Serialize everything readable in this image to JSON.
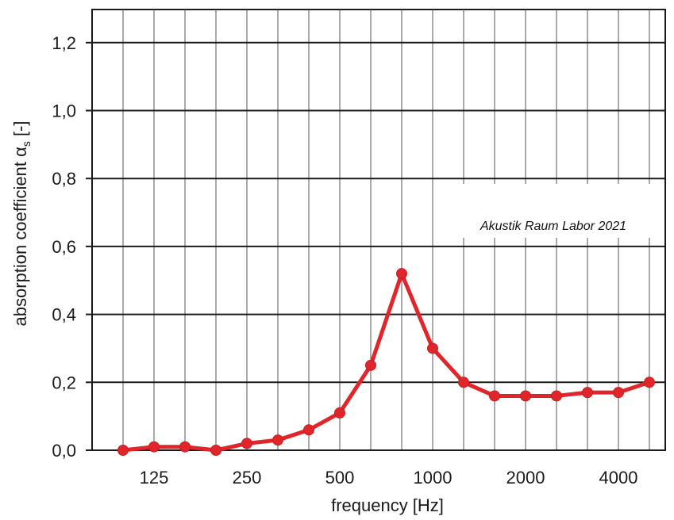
{
  "chart_data": {
    "type": "line",
    "x_scale": "log",
    "x": [
      100,
      125,
      160,
      200,
      250,
      315,
      400,
      500,
      630,
      800,
      1000,
      1250,
      1600,
      2000,
      2500,
      3150,
      4000,
      5000
    ],
    "x_tick_labels": [
      "125",
      "250",
      "500",
      "1000",
      "2000",
      "4000"
    ],
    "x_tick_values": [
      125,
      250,
      500,
      1000,
      2000,
      4000
    ],
    "series": [
      {
        "name": "",
        "color": "#e0262b",
        "values": [
          0.0,
          0.01,
          0.01,
          0.0,
          0.02,
          0.03,
          0.06,
          0.11,
          0.25,
          0.52,
          0.3,
          0.2,
          0.16,
          0.16,
          0.16,
          0.17,
          0.17,
          0.2
        ]
      }
    ],
    "y_tick_labels": [
      "0,0",
      "0,2",
      "0,4",
      "0,6",
      "0,8",
      "1,0",
      "1,2"
    ],
    "y_tick_values": [
      0.0,
      0.2,
      0.4,
      0.6,
      0.8,
      1.0,
      1.2
    ],
    "ylim": [
      0.0,
      1.2
    ],
    "xlabel": "frequency [Hz]",
    "ylabel_main": "absorption coefficient α",
    "ylabel_sub": "s",
    "ylabel_tail": " [-]",
    "annotation": "Akustik Raum Labor 2021",
    "grid": true,
    "line_color": "#e0262b",
    "marker_color": "#e0262b",
    "grid_color": "#1a1a1a"
  }
}
